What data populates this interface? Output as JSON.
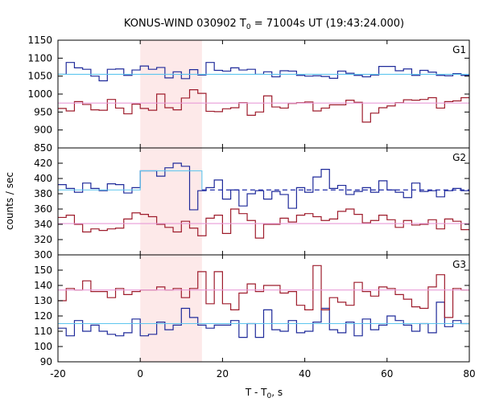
{
  "figure": {
    "title_main": "KONUS-WIND 030902 T",
    "title_sub": "0",
    "title_rest": " = 71004s UT (19:43:24.000)",
    "ylabel": "counts / sec",
    "xlabel_main": "T - T",
    "xlabel_sub": "0",
    "xlabel_rest": ", s"
  },
  "chart_data": {
    "type": "line",
    "x_axis": {
      "range": [
        -20,
        80
      ],
      "ticks": [
        -20,
        0,
        20,
        40,
        60,
        80
      ]
    },
    "highlight_interval": {
      "x": [
        0,
        15
      ],
      "color": "#fde9e9"
    },
    "colors": {
      "upper_hist": "#1f2a9a",
      "upper_bg": "#5ec6ee",
      "lower_hist": "#9e1c2c",
      "lower_bg": "#e89bd8"
    },
    "bin_edges": [
      -20,
      -18,
      -16,
      -14,
      -12,
      -10,
      -8,
      -6,
      -4,
      -2,
      0,
      2,
      4,
      6,
      8,
      10,
      12,
      14,
      16,
      18,
      20,
      22,
      24,
      26,
      28,
      30,
      32,
      34,
      36,
      38,
      40,
      42,
      44,
      46,
      48,
      50,
      52,
      54,
      56,
      58,
      60,
      62,
      64,
      66,
      68,
      70,
      72,
      74,
      76,
      78,
      80
    ],
    "panels": [
      {
        "label": "G1",
        "ylim": [
          850,
          1150
        ],
        "yticks": [
          850,
          900,
          950,
          1000,
          1050,
          1100,
          1150
        ],
        "series": [
          {
            "color": "upper_hist",
            "values": [
              1055,
              1088,
              1073,
              1069,
              1050,
              1037,
              1069,
              1070,
              1052,
              1067,
              1078,
              1069,
              1074,
              1045,
              1062,
              1043,
              1068,
              1053,
              1088,
              1066,
              1064,
              1073,
              1067,
              1069,
              1055,
              1062,
              1048,
              1065,
              1064,
              1052,
              1050,
              1051,
              1049,
              1044,
              1064,
              1058,
              1052,
              1048,
              1053,
              1077,
              1077,
              1065,
              1070,
              1052,
              1066,
              1061,
              1052,
              1051,
              1057,
              1052
            ]
          },
          {
            "color": "upper_bg",
            "level": 1055
          },
          {
            "color": "lower_hist",
            "values": [
              960,
              953,
              979,
              971,
              956,
              955,
              985,
              961,
              945,
              972,
              960,
              955,
              1000,
              962,
              956,
              989,
              1012,
              1002,
              952,
              951,
              959,
              962,
              976,
              941,
              950,
              995,
              964,
              961,
              974,
              976,
              978,
              953,
              961,
              970,
              970,
              983,
              977,
              922,
              947,
              962,
              967,
              976,
              984,
              983,
              985,
              990,
              961,
              979,
              981,
              990
            ]
          },
          {
            "color": "lower_bg",
            "level": 975
          }
        ]
      },
      {
        "label": "G2",
        "ylim": [
          300,
          440
        ],
        "yticks": [
          300,
          320,
          340,
          360,
          380,
          400,
          420
        ],
        "series": [
          {
            "color": "upper_hist",
            "values": [
              392,
              387,
              382,
              394,
              387,
              384,
              393,
              392,
              381,
              388,
              410,
              410,
              403,
              414,
              420,
              416,
              359,
              384,
              388,
              398,
              373,
              385,
              364,
              380,
              384,
              373,
              383,
              379,
              361,
              388,
              382,
              402,
              412,
              387,
              391,
              379,
              383,
              388,
              382,
              397,
              385,
              382,
              375,
              394,
              383,
              384,
              376,
              384,
              387,
              384
            ]
          },
          {
            "color": "upper_bg",
            "level": 385
          },
          {
            "color": "lower_hist",
            "values": [
              349,
              352,
              340,
              330,
              334,
              332,
              334,
              335,
              347,
              355,
              353,
              350,
              340,
              336,
              330,
              344,
              335,
              325,
              348,
              352,
              328,
              360,
              354,
              345,
              322,
              340,
              340,
              348,
              343,
              352,
              354,
              350,
              345,
              347,
              357,
              360,
              353,
              342,
              345,
              352,
              346,
              336,
              345,
              339,
              340,
              346,
              334,
              347,
              344,
              333
            ]
          },
          {
            "color": "lower_bg",
            "level": 341
          }
        ]
      },
      {
        "label": "G3",
        "ylim": [
          90,
          160
        ],
        "yticks": [
          90,
          100,
          110,
          120,
          130,
          140,
          150
        ],
        "series": [
          {
            "color": "upper_hist",
            "values": [
              112,
              107,
              117,
              110,
              114,
              110,
              108,
              107,
              109,
              118,
              107,
              108,
              116,
              111,
              114,
              125,
              119,
              114,
              112,
              114,
              114,
              117,
              106,
              115,
              106,
              124,
              111,
              110,
              117,
              109,
              110,
              116,
              125,
              111,
              109,
              116,
              107,
              118,
              111,
              114,
              120,
              117,
              114,
              110,
              115,
              109,
              129,
              113,
              117,
              115
            ]
          },
          {
            "color": "upper_bg",
            "level": 115
          },
          {
            "color": "lower_hist",
            "values": [
              130,
              138,
              137,
              143,
              136,
              136,
              132,
              138,
              134,
              136,
              137,
              137,
              139,
              137,
              138,
              132,
              138,
              149,
              128,
              149,
              128,
              124,
              135,
              141,
              136,
              140,
              140,
              135,
              136,
              127,
              124,
              153,
              124,
              132,
              129,
              127,
              142,
              136,
              133,
              139,
              138,
              134,
              131,
              126,
              125,
              139,
              147,
              119,
              138,
              137
            ]
          },
          {
            "color": "lower_bg",
            "level": 137
          }
        ]
      }
    ]
  }
}
